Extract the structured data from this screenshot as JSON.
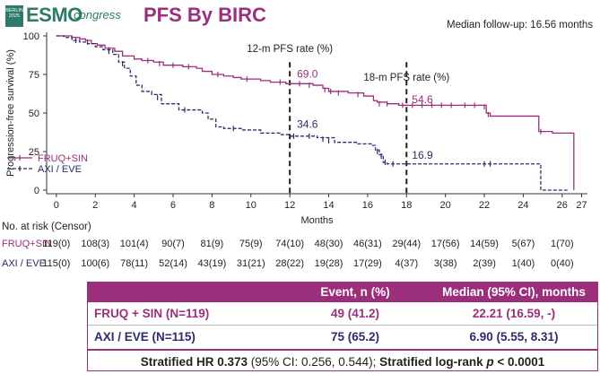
{
  "logo": {
    "box_line1": "BERLIN",
    "box_line2": "2025",
    "main": "ESMO",
    "sub": "congress"
  },
  "title": "PFS By BIRC",
  "follow_up": "Median follow-up: 16.56 months",
  "colors": {
    "fruq": "#9b2f7c",
    "axi": "#2c2c6c",
    "header": "#9b2f7c",
    "logo": "#2d7a6b"
  },
  "chart_data": {
    "type": "line",
    "xlabel": "Months",
    "ylabel": "Progression-free survival (%)",
    "xlim": [
      -0.5,
      27.3
    ],
    "ylim": [
      0,
      100
    ],
    "xticks": [
      0,
      2,
      4,
      6,
      8,
      10,
      12,
      14,
      16,
      18,
      20,
      22,
      24,
      26,
      27
    ],
    "yticks": [
      0,
      25,
      50,
      75,
      100
    ],
    "vlines": [
      {
        "x": 12,
        "label": "12-m PFS rate (%)"
      },
      {
        "x": 18,
        "label": "18-m PFS rate (%)"
      }
    ],
    "annotations": [
      {
        "x": 12,
        "y": 69.0,
        "text": "69.0",
        "series": 0
      },
      {
        "x": 12,
        "y": 34.6,
        "text": "34.6",
        "series": 1
      },
      {
        "x": 18,
        "y": 54.6,
        "text": "54.6",
        "series": 0
      },
      {
        "x": 18,
        "y": 16.9,
        "text": "16.9",
        "series": 1
      }
    ],
    "legend_position": "bottom-left",
    "series": [
      {
        "name": "FRUQ+SIN",
        "style": "solid",
        "steps": [
          [
            0,
            100
          ],
          [
            0.8,
            99
          ],
          [
            1.2,
            98
          ],
          [
            1.5,
            97
          ],
          [
            1.8,
            95
          ],
          [
            2.1,
            94
          ],
          [
            2.5,
            92
          ],
          [
            3.0,
            90
          ],
          [
            3.4,
            87
          ],
          [
            4.0,
            85
          ],
          [
            4.4,
            84
          ],
          [
            5.0,
            83
          ],
          [
            5.5,
            81
          ],
          [
            6.5,
            80
          ],
          [
            7.2,
            79
          ],
          [
            7.5,
            77
          ],
          [
            8.0,
            75
          ],
          [
            8.6,
            74
          ],
          [
            9.1,
            73
          ],
          [
            9.5,
            72
          ],
          [
            10.5,
            71
          ],
          [
            11.0,
            70
          ],
          [
            11.8,
            69
          ],
          [
            12.4,
            69
          ],
          [
            13.2,
            68
          ],
          [
            13.7,
            66
          ],
          [
            14.0,
            64
          ],
          [
            15.0,
            63
          ],
          [
            15.8,
            61
          ],
          [
            16.3,
            58
          ],
          [
            16.5,
            57
          ],
          [
            17.0,
            56
          ],
          [
            17.6,
            55
          ],
          [
            21.8,
            55
          ],
          [
            22.1,
            50
          ],
          [
            22.3,
            48
          ],
          [
            24.5,
            48
          ],
          [
            24.8,
            38
          ],
          [
            25.5,
            37
          ],
          [
            26.6,
            37
          ],
          [
            26.6,
            0
          ]
        ],
        "censors": [
          [
            1.6,
            96
          ],
          [
            2.7,
            91
          ],
          [
            4.7,
            84
          ],
          [
            5.3,
            82
          ],
          [
            6.0,
            81
          ],
          [
            6.8,
            80
          ],
          [
            8.3,
            75
          ],
          [
            9.8,
            72
          ],
          [
            11.5,
            70
          ],
          [
            12.5,
            69
          ],
          [
            13.0,
            68
          ],
          [
            13.8,
            65
          ],
          [
            14.1,
            64
          ],
          [
            14.5,
            63
          ],
          [
            15.5,
            62
          ],
          [
            16.6,
            56
          ],
          [
            17.0,
            56
          ],
          [
            17.8,
            55
          ],
          [
            18.3,
            55
          ],
          [
            18.8,
            55
          ],
          [
            19.3,
            55
          ],
          [
            19.8,
            55
          ],
          [
            20.3,
            55
          ],
          [
            21.0,
            55
          ],
          [
            21.5,
            55
          ],
          [
            22.0,
            54
          ],
          [
            22.2,
            49
          ],
          [
            24.9,
            38
          ]
        ]
      },
      {
        "name": "AXI / EVE",
        "style": "dashed",
        "steps": [
          [
            0,
            100
          ],
          [
            0.4,
            99
          ],
          [
            0.8,
            97
          ],
          [
            1.2,
            96
          ],
          [
            1.6,
            95
          ],
          [
            2.0,
            93
          ],
          [
            2.4,
            91
          ],
          [
            2.9,
            88
          ],
          [
            3.2,
            83
          ],
          [
            3.5,
            79
          ],
          [
            3.8,
            74
          ],
          [
            4.1,
            68
          ],
          [
            4.4,
            64
          ],
          [
            4.9,
            62
          ],
          [
            5.4,
            56
          ],
          [
            6.3,
            52
          ],
          [
            7.5,
            50
          ],
          [
            7.8,
            46
          ],
          [
            8.2,
            41
          ],
          [
            8.6,
            40
          ],
          [
            9.5,
            39
          ],
          [
            10.5,
            37
          ],
          [
            11.5,
            36
          ],
          [
            12.0,
            35
          ],
          [
            13.4,
            34
          ],
          [
            14.3,
            31
          ],
          [
            15.5,
            30
          ],
          [
            16.2,
            29
          ],
          [
            16.4,
            26
          ],
          [
            16.6,
            23
          ],
          [
            16.8,
            18
          ],
          [
            17.0,
            17
          ],
          [
            24.5,
            17
          ],
          [
            24.9,
            0
          ],
          [
            26.3,
            0
          ]
        ],
        "censors": [
          [
            1.0,
            97
          ],
          [
            2.7,
            90
          ],
          [
            3.4,
            82
          ],
          [
            5.2,
            60
          ],
          [
            6.6,
            52
          ],
          [
            9.1,
            40
          ],
          [
            12.2,
            35
          ],
          [
            13.0,
            35
          ],
          [
            13.7,
            33
          ],
          [
            14.0,
            32
          ],
          [
            16.5,
            25
          ],
          [
            16.7,
            22
          ],
          [
            16.9,
            18
          ],
          [
            17.3,
            17
          ],
          [
            22.0,
            17
          ],
          [
            22.3,
            17
          ]
        ]
      }
    ]
  },
  "risk": {
    "heading": "No. at risk (Censor)",
    "rows": [
      {
        "label": "FRUQ+SIN",
        "values": [
          "119(0)",
          "108(3)",
          "101(4)",
          "90(7)",
          "81(9)",
          "75(9)",
          "74(10)",
          "48(30)",
          "46(31)",
          "29(44)",
          "17(56)",
          "14(59)",
          "5(67)",
          "1(70)"
        ]
      },
      {
        "label": "AXI / EVE",
        "values": [
          "115(0)",
          "100(6)",
          "78(11)",
          "52(14)",
          "43(19)",
          "31(21)",
          "28(22)",
          "19(28)",
          "17(29)",
          "4(37)",
          "3(38)",
          "2(39)",
          "1(40)",
          "0(40)"
        ]
      }
    ],
    "months": [
      0,
      2,
      4,
      6,
      8,
      10,
      12,
      14,
      16,
      18,
      20,
      22,
      24,
      26
    ]
  },
  "table": {
    "headers": [
      "",
      "Event, n (%)",
      "Median (95% CI), months"
    ],
    "rows": [
      {
        "arm": "FRUQ + SIN (N=119)",
        "event": "49 (41.2)",
        "median": "22.21 (16.59, -)"
      },
      {
        "arm": "AXI / EVE (N=115)",
        "event": "75 (65.2)",
        "median": "6.90 (5.55, 8.31)"
      }
    ],
    "hr_bold1": "Stratified HR 0.373",
    "hr_normal": " (95% CI: 0.256, 0.544); ",
    "hr_bold2": "Stratified log-rank ",
    "hr_p_italic": "p",
    "hr_p_value": " < 0.0001"
  }
}
